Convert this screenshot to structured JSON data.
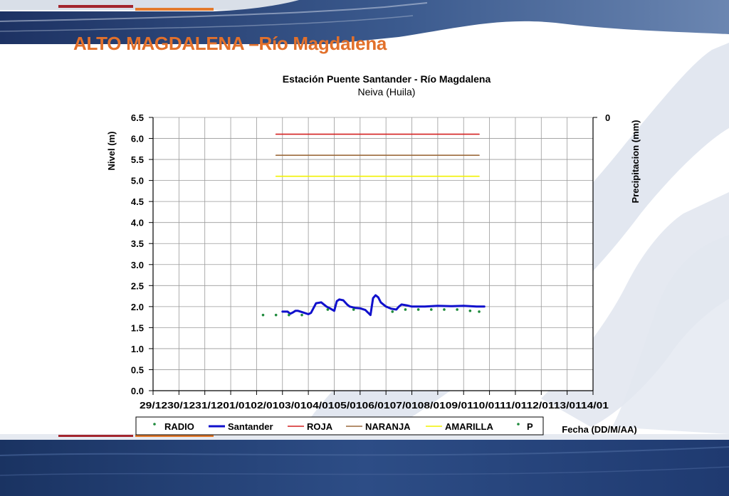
{
  "slide": {
    "title": "ALTO MAGDALENA –Río Magdalena",
    "colors": {
      "title": "#e2702b",
      "header_dark": "#233a6e",
      "footer_dark": "#1c3567",
      "accent_red": "#a3262e",
      "accent_orange": "#e37a2c",
      "watermark": "#dde3ee"
    }
  },
  "chart_data": {
    "type": "line",
    "title": "Estación Puente Santander - Río Magdalena",
    "subtitle": "Neiva (Huila)",
    "ylabel": "Nivel (m)",
    "y2label": "Precipitacion (mm)",
    "xlabel": "Fecha (DD/M/AA)",
    "ylim": [
      0,
      6.5
    ],
    "y_ticks": [
      "0.0",
      "0.5",
      "1.0",
      "1.5",
      "2.0",
      "2.5",
      "3.0",
      "3.5",
      "4.0",
      "4.5",
      "5.0",
      "5.5",
      "6.0",
      "6.5"
    ],
    "y2_ticks": [
      "0"
    ],
    "x_ticks": [
      "29/12",
      "30/12",
      "31/12",
      "01/01",
      "02/01",
      "03/01",
      "04/01",
      "05/01",
      "06/01",
      "07/01",
      "08/01",
      "09/01",
      "10/01",
      "11/01",
      "12/01",
      "13/01",
      "14/01"
    ],
    "x_tick_label_row": "29/1230/1231/1201/0102/0103/0104/0105/0106/0107/0108/0109/0110/0111/0112/0113/0114/01",
    "grid": true,
    "legend_placement": "bottom",
    "series": [
      {
        "name": "RADIO",
        "kind": "points",
        "color": "#1e8a3c",
        "x": [],
        "y": []
      },
      {
        "name": "Santander",
        "kind": "line",
        "color": "#1010cc",
        "x": [
          5.0,
          5.2,
          5.3,
          5.4,
          5.5,
          5.6,
          5.8,
          6.0,
          6.1,
          6.3,
          6.5,
          6.7,
          6.8,
          7.0,
          7.1,
          7.2,
          7.35,
          7.5,
          7.6,
          7.8,
          8.0,
          8.2,
          8.4,
          8.5,
          8.6,
          8.7,
          8.8,
          9.0,
          9.2,
          9.4,
          9.5,
          9.6,
          9.8,
          10.0,
          10.5,
          11.0,
          11.5,
          12.0,
          12.5,
          12.8
        ],
        "y": [
          1.88,
          1.88,
          1.83,
          1.86,
          1.9,
          1.9,
          1.86,
          1.82,
          1.85,
          2.08,
          2.1,
          2.0,
          1.97,
          1.9,
          2.13,
          2.17,
          2.15,
          2.05,
          2.0,
          1.97,
          1.96,
          1.92,
          1.8,
          2.2,
          2.27,
          2.22,
          2.1,
          2.0,
          1.95,
          1.93,
          2.0,
          2.05,
          2.03,
          2.0,
          2.0,
          2.02,
          2.01,
          2.02,
          2.0,
          2.0
        ]
      },
      {
        "name": "ROJA",
        "kind": "line",
        "color": "#d42020",
        "x": [
          4.75,
          12.6
        ],
        "y": [
          6.1,
          6.1
        ]
      },
      {
        "name": "NARANJA",
        "kind": "line",
        "color": "#9c6a3c",
        "x": [
          4.75,
          12.6
        ],
        "y": [
          5.6,
          5.6
        ]
      },
      {
        "name": "AMARILLA",
        "kind": "line",
        "color": "#f2f200",
        "x": [
          4.75,
          12.6
        ],
        "y": [
          5.1,
          5.1
        ]
      },
      {
        "name": "P",
        "kind": "points",
        "color": "#1e8a3c",
        "x": [
          4.25,
          4.75,
          5.25,
          5.75,
          6.75,
          7.75,
          9.25,
          9.75,
          10.25,
          10.75,
          11.25,
          11.75,
          12.25,
          12.6
        ],
        "y": [
          1.8,
          1.8,
          1.8,
          1.8,
          1.93,
          1.93,
          1.88,
          1.93,
          1.93,
          1.93,
          1.93,
          1.93,
          1.9,
          1.88
        ]
      }
    ]
  }
}
